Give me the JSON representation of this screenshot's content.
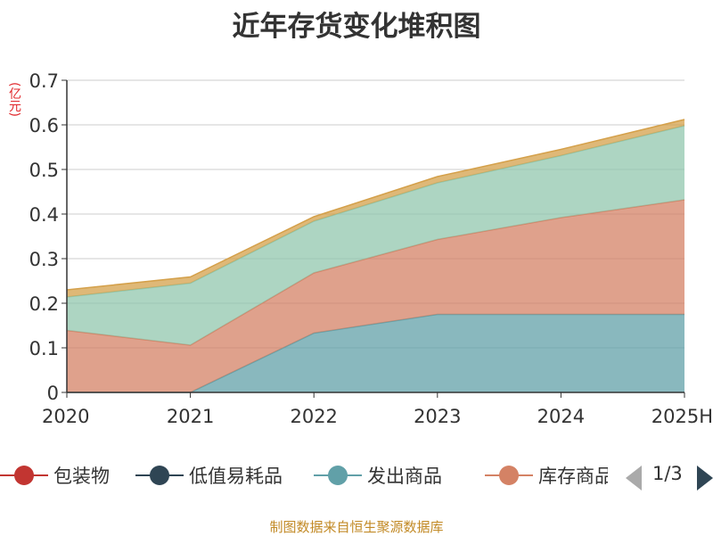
{
  "title": "近年存货变化堆积图",
  "unit": "(亿元)",
  "source": "制图数据来自恒生聚源数据库",
  "pager": {
    "text": "1/3"
  },
  "legend": [
    {
      "name": "包装物",
      "color": "#c23531"
    },
    {
      "name": "低值易耗品",
      "color": "#2f4554"
    },
    {
      "name": "发出商品",
      "color": "#61a0a8"
    },
    {
      "name": "库存商品",
      "color": "#d48265"
    }
  ],
  "chart_data": {
    "type": "area",
    "stacked": true,
    "title": "近年存货变化堆积图",
    "ylabel": "(亿元)",
    "categories": [
      "2020",
      "2021",
      "2022",
      "2023",
      "2024",
      "2025H"
    ],
    "ylim": [
      0,
      0.7
    ],
    "yticks": [
      "0",
      "0.1",
      "0.2",
      "0.3",
      "0.4",
      "0.5",
      "0.6",
      "0.7"
    ],
    "grid": true,
    "series": [
      {
        "color": "#61a0a8",
        "values": [
          0.0,
          0.0,
          0.133,
          0.175,
          0.175,
          0.175
        ]
      },
      {
        "color": "#d48265",
        "values": [
          0.139,
          0.106,
          0.135,
          0.168,
          0.217,
          0.257
        ]
      },
      {
        "color": "#91c7ae",
        "values": [
          0.075,
          0.139,
          0.116,
          0.127,
          0.139,
          0.166
        ]
      },
      {
        "color": "#d4a04a",
        "values": [
          0.016,
          0.014,
          0.01,
          0.014,
          0.014,
          0.014
        ]
      }
    ]
  }
}
